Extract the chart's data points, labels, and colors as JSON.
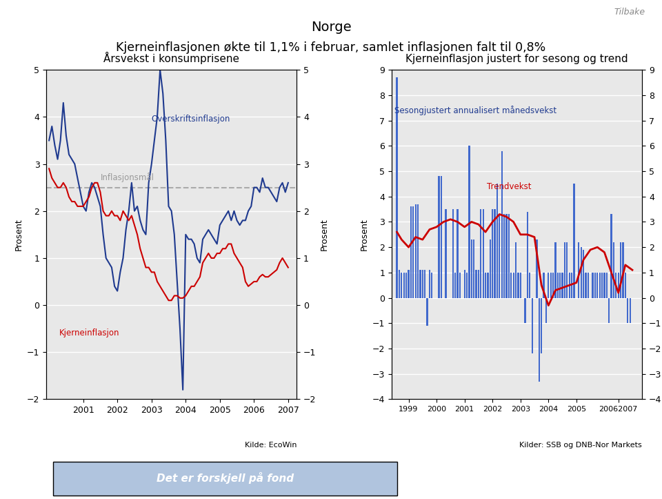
{
  "title_line1": "Norge",
  "title_line2": "Kjerneinflasjonen økte til 1,1% i februar, samlet inflasjonen falt til 0,8%",
  "tilbake": "Tilbake",
  "left_title": "Årsvekst i konsumprisene",
  "right_title": "Kjerneinflasjon justert for sesong og trend",
  "left_ylabel": "Prosent",
  "right_ylabel": "Prosent",
  "left_source": "Kilde: EcoWin",
  "right_source": "Kilder: SSB og DNB-Nor Markets",
  "left_ylim": [
    -2,
    5
  ],
  "right_ylim": [
    -4,
    9
  ],
  "inflasjonsmaal": 2.5,
  "inflasjonsmaal_label": "Inflasjonsmål",
  "overskrift_label": "Overskriftsinflasjon",
  "kjerne_label": "Kjerneinflasjon",
  "sesongjustert_label": "Sesongjustert annualisert månedsvekst",
  "trendvekst_label": "Trendvekst",
  "blue_color": "#1F3A8F",
  "red_color": "#CC0000",
  "bar_color": "#4169CD",
  "dashed_color": "#aaaaaa",
  "bg_color": "#E8E8E8",
  "left_blue_x": [
    2000.0,
    2000.083,
    2000.167,
    2000.25,
    2000.333,
    2000.417,
    2000.5,
    2000.583,
    2000.667,
    2000.75,
    2000.833,
    2000.917,
    2001.0,
    2001.083,
    2001.167,
    2001.25,
    2001.333,
    2001.417,
    2001.5,
    2001.583,
    2001.667,
    2001.75,
    2001.833,
    2001.917,
    2002.0,
    2002.083,
    2002.167,
    2002.25,
    2002.333,
    2002.417,
    2002.5,
    2002.583,
    2002.667,
    2002.75,
    2002.833,
    2002.917,
    2003.0,
    2003.083,
    2003.167,
    2003.25,
    2003.333,
    2003.417,
    2003.5,
    2003.583,
    2003.667,
    2003.75,
    2003.833,
    2003.917,
    2004.0,
    2004.083,
    2004.167,
    2004.25,
    2004.333,
    2004.417,
    2004.5,
    2004.583,
    2004.667,
    2004.75,
    2004.833,
    2004.917,
    2005.0,
    2005.083,
    2005.167,
    2005.25,
    2005.333,
    2005.417,
    2005.5,
    2005.583,
    2005.667,
    2005.75,
    2005.833,
    2005.917,
    2006.0,
    2006.083,
    2006.167,
    2006.25,
    2006.333,
    2006.417,
    2006.5,
    2006.583,
    2006.667,
    2006.75,
    2006.833,
    2006.917,
    2007.0
  ],
  "left_blue_y": [
    3.5,
    3.8,
    3.4,
    3.1,
    3.5,
    4.3,
    3.6,
    3.2,
    3.1,
    3.0,
    2.7,
    2.4,
    2.1,
    2.0,
    2.4,
    2.6,
    2.5,
    2.3,
    2.1,
    1.5,
    1.0,
    0.9,
    0.8,
    0.4,
    0.3,
    0.7,
    1.0,
    1.6,
    2.0,
    2.6,
    2.0,
    2.1,
    1.8,
    1.6,
    1.5,
    2.6,
    3.0,
    3.5,
    4.0,
    5.0,
    4.5,
    3.5,
    2.1,
    2.0,
    1.5,
    0.5,
    -0.5,
    -1.8,
    1.5,
    1.4,
    1.4,
    1.3,
    1.0,
    0.9,
    1.4,
    1.5,
    1.6,
    1.5,
    1.4,
    1.3,
    1.7,
    1.8,
    1.9,
    2.0,
    1.8,
    2.0,
    1.8,
    1.7,
    1.8,
    1.8,
    2.0,
    2.1,
    2.5,
    2.5,
    2.4,
    2.7,
    2.5,
    2.5,
    2.4,
    2.3,
    2.2,
    2.5,
    2.6,
    2.4,
    2.6
  ],
  "left_red_x": [
    2000.0,
    2000.083,
    2000.167,
    2000.25,
    2000.333,
    2000.417,
    2000.5,
    2000.583,
    2000.667,
    2000.75,
    2000.833,
    2000.917,
    2001.0,
    2001.083,
    2001.167,
    2001.25,
    2001.333,
    2001.417,
    2001.5,
    2001.583,
    2001.667,
    2001.75,
    2001.833,
    2001.917,
    2002.0,
    2002.083,
    2002.167,
    2002.25,
    2002.333,
    2002.417,
    2002.5,
    2002.583,
    2002.667,
    2002.75,
    2002.833,
    2002.917,
    2003.0,
    2003.083,
    2003.167,
    2003.25,
    2003.333,
    2003.417,
    2003.5,
    2003.583,
    2003.667,
    2003.75,
    2003.833,
    2003.917,
    2004.0,
    2004.083,
    2004.167,
    2004.25,
    2004.333,
    2004.417,
    2004.5,
    2004.583,
    2004.667,
    2004.75,
    2004.833,
    2004.917,
    2005.0,
    2005.083,
    2005.167,
    2005.25,
    2005.333,
    2005.417,
    2005.5,
    2005.583,
    2005.667,
    2005.75,
    2005.833,
    2005.917,
    2006.0,
    2006.083,
    2006.167,
    2006.25,
    2006.333,
    2006.417,
    2006.5,
    2006.583,
    2006.667,
    2006.75,
    2006.833,
    2006.917,
    2007.0
  ],
  "left_red_y": [
    2.9,
    2.7,
    2.6,
    2.5,
    2.5,
    2.6,
    2.5,
    2.3,
    2.2,
    2.2,
    2.1,
    2.1,
    2.1,
    2.2,
    2.3,
    2.5,
    2.6,
    2.6,
    2.4,
    2.0,
    1.9,
    1.9,
    2.0,
    1.9,
    1.9,
    1.8,
    2.0,
    1.9,
    1.8,
    1.9,
    1.7,
    1.5,
    1.2,
    1.0,
    0.8,
    0.8,
    0.7,
    0.7,
    0.5,
    0.4,
    0.3,
    0.2,
    0.1,
    0.1,
    0.2,
    0.2,
    0.15,
    0.15,
    0.2,
    0.3,
    0.4,
    0.4,
    0.5,
    0.6,
    0.9,
    1.0,
    1.1,
    1.0,
    1.0,
    1.1,
    1.1,
    1.2,
    1.2,
    1.3,
    1.3,
    1.1,
    1.0,
    0.9,
    0.8,
    0.5,
    0.4,
    0.45,
    0.5,
    0.5,
    0.6,
    0.65,
    0.6,
    0.6,
    0.65,
    0.7,
    0.75,
    0.9,
    1.0,
    0.9,
    0.8
  ],
  "right_bar_x": [
    1998.583,
    1998.667,
    1998.75,
    1998.833,
    1998.917,
    1999.0,
    1999.083,
    1999.167,
    1999.25,
    1999.333,
    1999.417,
    1999.5,
    1999.583,
    1999.667,
    1999.75,
    1999.833,
    1999.917,
    2000.0,
    2000.083,
    2000.167,
    2000.25,
    2000.333,
    2000.417,
    2000.5,
    2000.583,
    2000.667,
    2000.75,
    2000.833,
    2000.917,
    2001.0,
    2001.083,
    2001.167,
    2001.25,
    2001.333,
    2001.417,
    2001.5,
    2001.583,
    2001.667,
    2001.75,
    2001.833,
    2001.917,
    2002.0,
    2002.083,
    2002.167,
    2002.25,
    2002.333,
    2002.417,
    2002.5,
    2002.583,
    2002.667,
    2002.75,
    2002.833,
    2002.917,
    2003.0,
    2003.083,
    2003.167,
    2003.25,
    2003.333,
    2003.417,
    2003.5,
    2003.583,
    2003.667,
    2003.75,
    2003.833,
    2003.917,
    2004.0,
    2004.083,
    2004.167,
    2004.25,
    2004.333,
    2004.417,
    2004.5,
    2004.583,
    2004.667,
    2004.75,
    2004.833,
    2004.917,
    2005.0,
    2005.083,
    2005.167,
    2005.25,
    2005.333,
    2005.417,
    2005.5,
    2005.583,
    2005.667,
    2005.75,
    2005.833,
    2005.917,
    2006.0,
    2006.083,
    2006.167,
    2006.25,
    2006.333,
    2006.417,
    2006.5,
    2006.583,
    2006.667,
    2006.75,
    2006.833,
    2006.917,
    2007.0
  ],
  "right_bar_y": [
    8.7,
    1.1,
    1.0,
    1.0,
    1.0,
    1.1,
    3.6,
    3.6,
    3.7,
    3.7,
    1.1,
    1.1,
    1.1,
    -1.1,
    1.1,
    1.0,
    0.0,
    0.0,
    4.8,
    4.8,
    0.0,
    3.5,
    0.0,
    0.0,
    3.5,
    1.0,
    3.5,
    1.0,
    0.0,
    1.1,
    1.0,
    6.0,
    2.3,
    2.3,
    1.1,
    1.1,
    3.5,
    3.5,
    1.0,
    1.0,
    2.3,
    3.5,
    3.5,
    4.5,
    3.3,
    5.8,
    3.3,
    3.3,
    3.3,
    1.0,
    1.0,
    2.2,
    1.0,
    1.0,
    0.0,
    -1.0,
    3.4,
    1.0,
    -2.2,
    0.0,
    2.3,
    -3.3,
    -2.2,
    1.0,
    -1.0,
    1.0,
    1.0,
    1.0,
    2.2,
    1.0,
    1.0,
    1.0,
    2.2,
    2.2,
    1.0,
    1.0,
    4.5,
    0.0,
    2.2,
    2.0,
    1.9,
    1.0,
    1.0,
    0.0,
    1.0,
    1.0,
    1.0,
    1.0,
    1.0,
    1.0,
    1.0,
    -1.0,
    3.3,
    2.2,
    1.0,
    1.0,
    2.2,
    2.2,
    1.0,
    -1.0,
    -1.0,
    0.0
  ],
  "right_red_x": [
    1998.583,
    1998.75,
    1999.0,
    1999.25,
    1999.5,
    1999.75,
    2000.0,
    2000.25,
    2000.5,
    2000.75,
    2001.0,
    2001.25,
    2001.5,
    2001.75,
    2002.0,
    2002.25,
    2002.5,
    2002.75,
    2003.0,
    2003.25,
    2003.5,
    2003.75,
    2004.0,
    2004.25,
    2004.5,
    2004.75,
    2005.0,
    2005.25,
    2005.5,
    2005.75,
    2006.0,
    2006.25,
    2006.5,
    2006.75,
    2007.0
  ],
  "right_red_y": [
    2.6,
    2.3,
    2.0,
    2.4,
    2.3,
    2.7,
    2.8,
    3.0,
    3.1,
    3.0,
    2.8,
    3.0,
    2.9,
    2.6,
    3.0,
    3.3,
    3.2,
    3.0,
    2.5,
    2.5,
    2.4,
    0.5,
    -0.3,
    0.3,
    0.4,
    0.5,
    0.6,
    1.5,
    1.9,
    2.0,
    1.8,
    1.0,
    0.2,
    1.3,
    1.1
  ],
  "footer_bg": "#B0C4DE",
  "footer_text": "Det er forskjell på fond"
}
